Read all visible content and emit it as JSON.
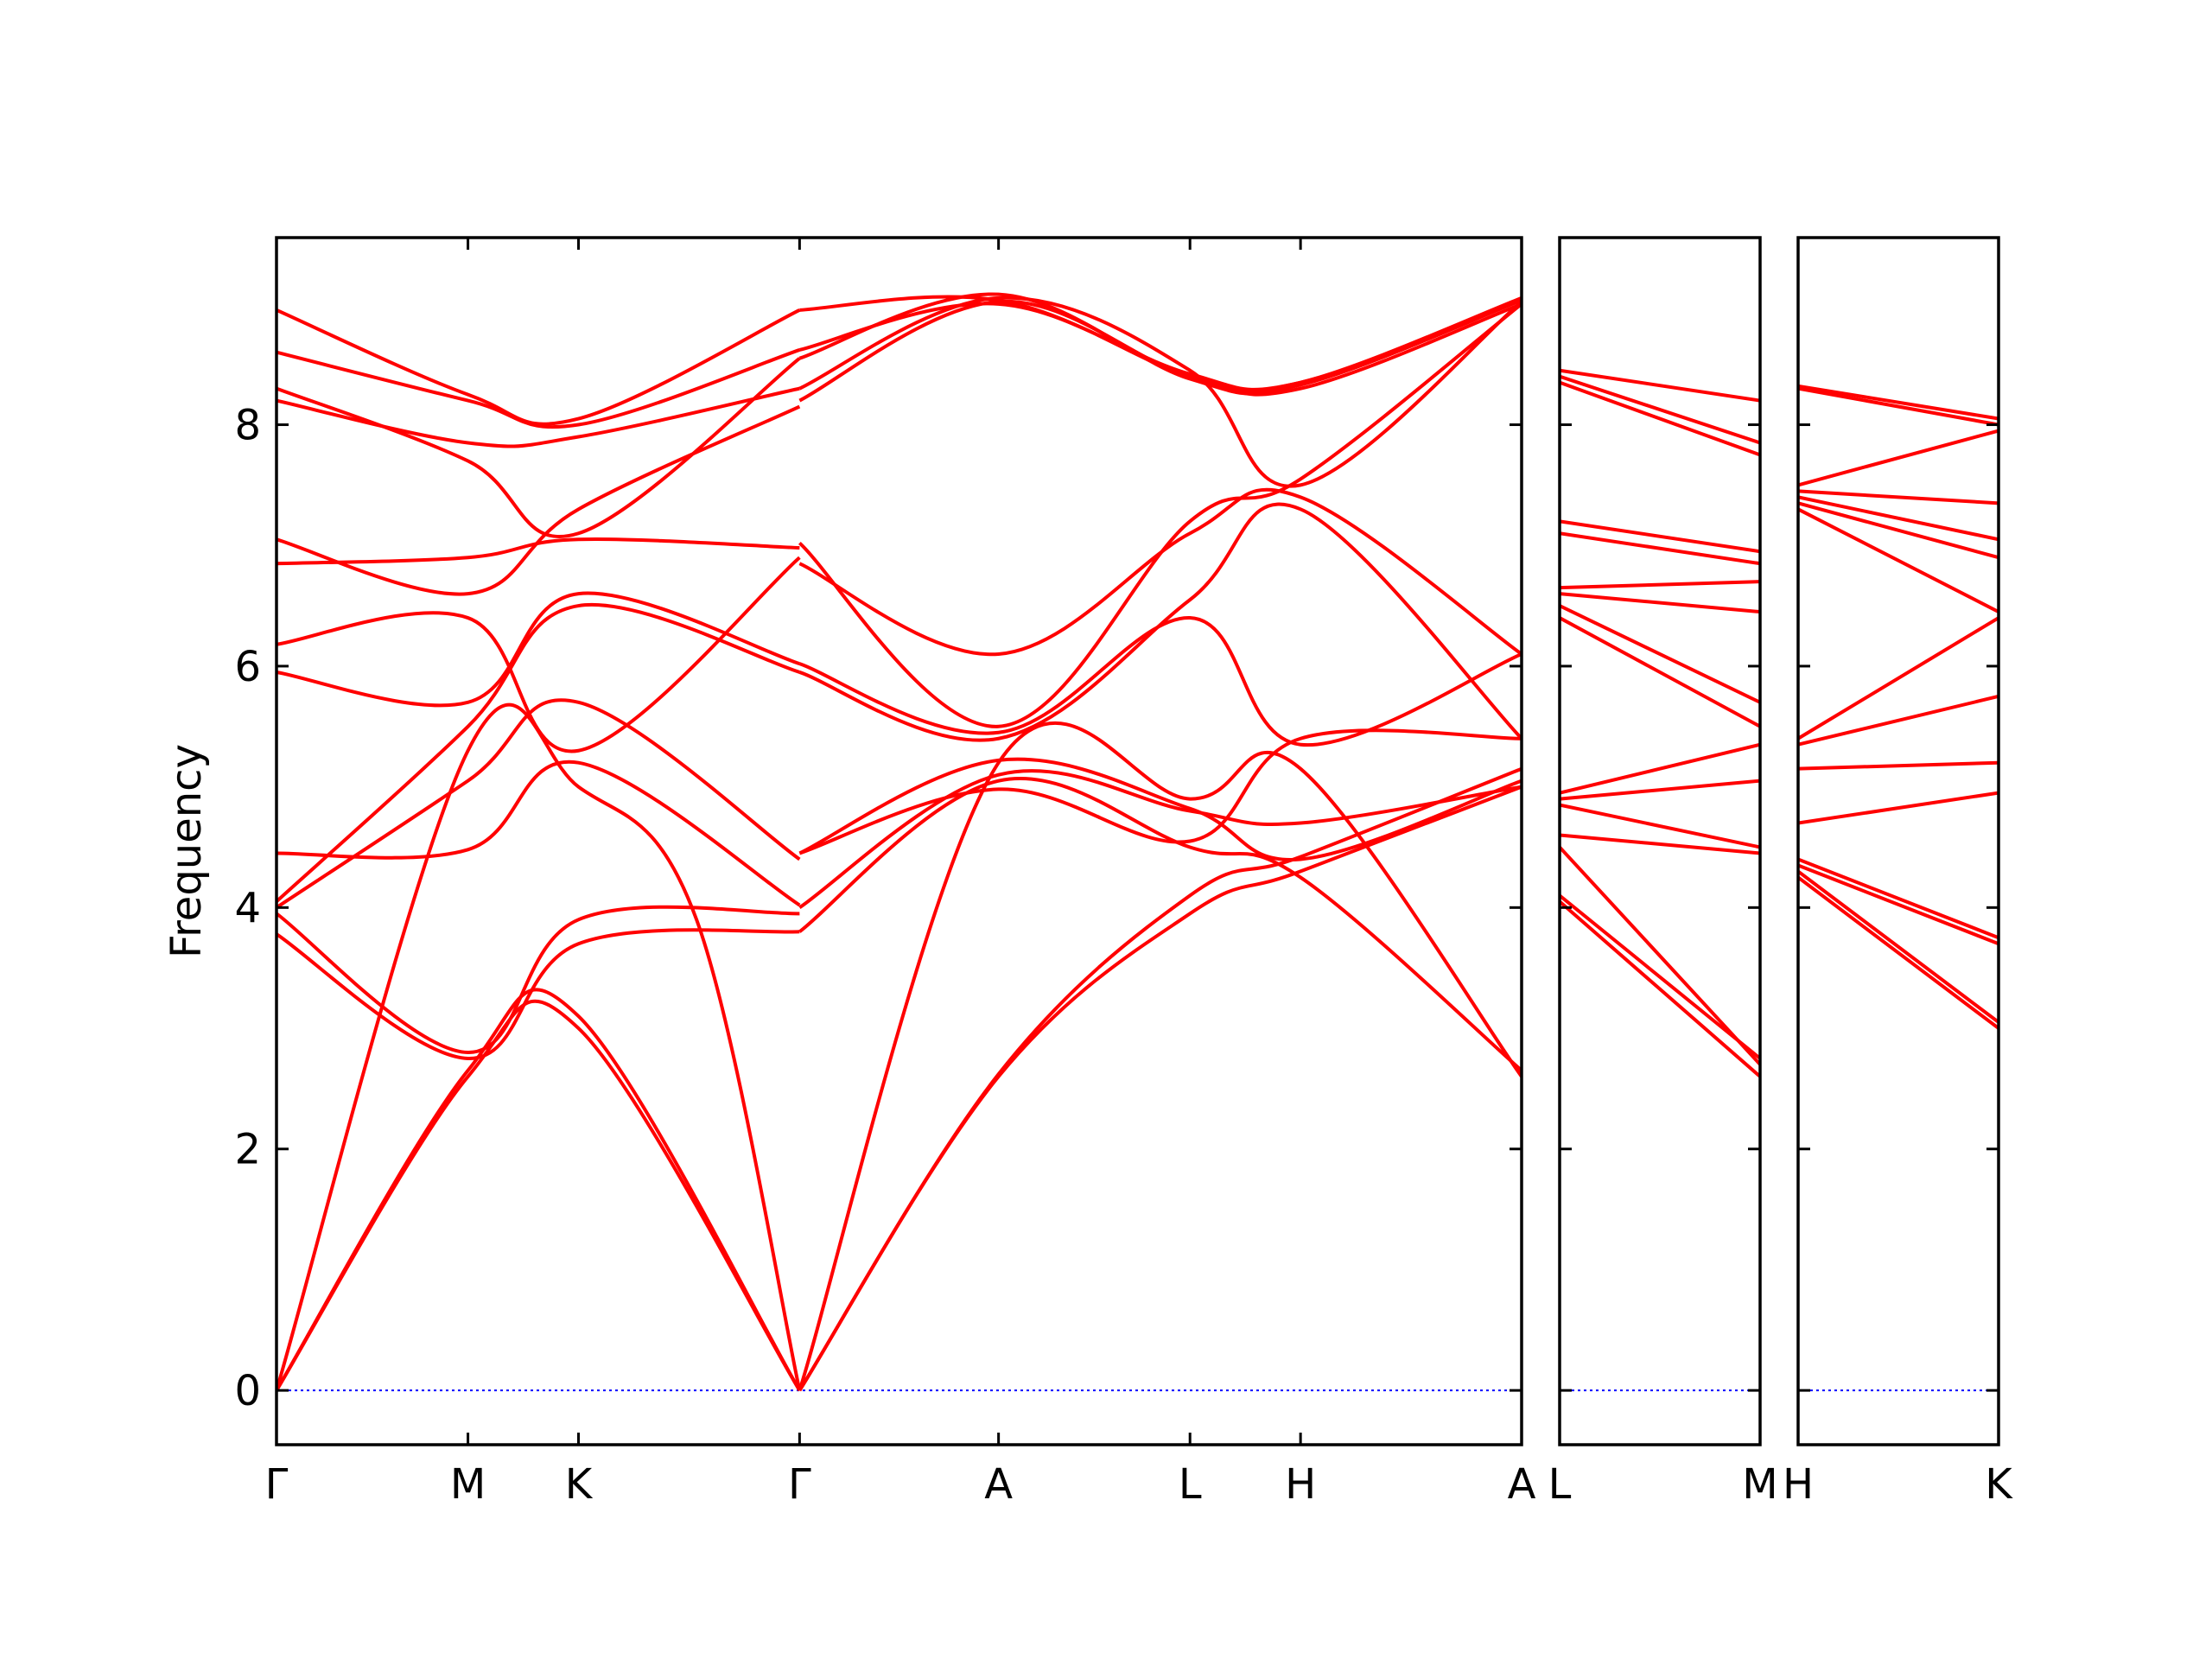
{
  "chart_data": {
    "type": "line",
    "ylabel": "Frequency",
    "ylim": [
      -0.45,
      9.55
    ],
    "yticks": [
      "0",
      "2",
      "4",
      "6",
      "8"
    ],
    "ytick_values": [
      0,
      2,
      4,
      6,
      8
    ],
    "grid": false,
    "colors": {
      "bands": "#ff0000",
      "zero_line": "#0000ff",
      "frame": "#000000"
    },
    "panels": [
      {
        "path_labels": [
          "Γ",
          "M",
          "K",
          "Γ",
          "A",
          "L",
          "H",
          "A"
        ],
        "label_positions": [
          0,
          0.866,
          1.366,
          2.366,
          3.266,
          4.132,
          4.632,
          5.632
        ],
        "bands": [
          {
            "x": [
              0,
              0.866,
              1.366,
              2.366
            ],
            "y": [
              0,
              2.6,
              3.0,
              0
            ]
          },
          {
            "x": [
              0,
              0.866,
              1.366,
              2.366
            ],
            "y": [
              0,
              2.65,
              3.1,
              0
            ]
          },
          {
            "x": [
              0,
              0.866,
              1.366,
              1.9,
              2.366
            ],
            "y": [
              0,
              5.3,
              5.0,
              3.9,
              0
            ]
          },
          {
            "x": [
              0,
              0.866,
              1.366,
              2.366
            ],
            "y": [
              3.78,
              2.75,
              3.7,
              3.8
            ]
          },
          {
            "x": [
              0,
              0.866,
              1.366,
              2.366
            ],
            "y": [
              3.95,
              2.8,
              3.9,
              3.95
            ]
          },
          {
            "x": [
              0,
              0.866,
              1.366,
              2.366
            ],
            "y": [
              4.45,
              4.48,
              5.2,
              4.02
            ]
          },
          {
            "x": [
              0,
              0.866,
              1.366,
              2.366
            ],
            "y": [
              4.0,
              5.05,
              5.7,
              4.4
            ]
          },
          {
            "x": [
              0,
              0.866,
              1.366,
              2.366
            ],
            "y": [
              4.05,
              5.5,
              6.5,
              5.95
            ]
          },
          {
            "x": [
              0,
              0.866,
              1.366,
              2.366
            ],
            "y": [
              5.95,
              5.7,
              6.6,
              6.02
            ]
          },
          {
            "x": [
              0,
              0.866,
              1.366,
              2.366
            ],
            "y": [
              6.18,
              6.4,
              5.3,
              6.9
            ]
          },
          {
            "x": [
              0,
              0.866,
              1.366,
              2.366
            ],
            "y": [
              6.85,
              6.9,
              7.05,
              6.98
            ]
          },
          {
            "x": [
              0,
              0.866,
              1.366,
              2.366
            ],
            "y": [
              7.05,
              6.6,
              7.3,
              8.15
            ]
          },
          {
            "x": [
              0,
              0.866,
              1.366,
              2.366
            ],
            "y": [
              8.2,
              7.85,
              7.9,
              8.3
            ]
          },
          {
            "x": [
              0,
              0.866,
              1.366,
              2.366
            ],
            "y": [
              8.3,
              7.7,
              7.1,
              8.55
            ]
          },
          {
            "x": [
              0,
              0.866,
              1.366,
              2.366
            ],
            "y": [
              8.6,
              8.2,
              8.0,
              8.62
            ]
          },
          {
            "x": [
              0,
              0.866,
              1.366,
              2.366
            ],
            "y": [
              8.95,
              8.25,
              8.05,
              8.95
            ]
          },
          {
            "x": [
              2.366,
              3.266,
              4.132,
              4.632,
              5.632
            ],
            "y": [
              0,
              2.6,
              3.95,
              4.3,
              5.0
            ]
          },
          {
            "x": [
              2.366,
              3.266,
              4.132,
              4.632,
              5.632
            ],
            "y": [
              0,
              2.62,
              4.1,
              4.42,
              5.15
            ]
          },
          {
            "x": [
              2.366,
              3.266,
              4.132,
              4.632,
              5.632
            ],
            "y": [
              0,
              5.2,
              4.9,
              5.15,
              2.6
            ]
          },
          {
            "x": [
              2.366,
              3.266,
              4.132,
              4.632,
              5.632
            ],
            "y": [
              3.8,
              5.05,
              4.5,
              4.25,
              2.65
            ]
          },
          {
            "x": [
              2.366,
              3.266,
              4.132,
              4.632,
              5.632
            ],
            "y": [
              4.0,
              5.1,
              4.8,
              4.7,
              5.0
            ]
          },
          {
            "x": [
              2.366,
              3.266,
              4.132,
              4.632,
              5.632
            ],
            "y": [
              4.45,
              4.98,
              4.55,
              5.4,
              5.4
            ]
          },
          {
            "x": [
              2.366,
              3.266,
              4.132,
              4.632,
              5.632
            ],
            "y": [
              4.45,
              5.22,
              4.82,
              4.4,
              5.05
            ]
          },
          {
            "x": [
              2.366,
              3.266,
              4.132,
              4.632,
              5.632
            ],
            "y": [
              5.95,
              5.4,
              6.55,
              7.3,
              5.4
            ]
          },
          {
            "x": [
              2.366,
              3.266,
              4.132,
              4.632,
              5.632
            ],
            "y": [
              6.02,
              5.45,
              6.4,
              5.35,
              6.1
            ]
          },
          {
            "x": [
              2.366,
              3.266,
              4.132,
              4.632,
              5.632
            ],
            "y": [
              6.85,
              6.1,
              7.1,
              7.4,
              6.1
            ]
          },
          {
            "x": [
              2.366,
              3.266,
              4.132,
              4.632,
              5.632
            ],
            "y": [
              7.02,
              5.5,
              7.2,
              7.55,
              9.0
            ]
          },
          {
            "x": [
              2.366,
              3.266,
              4.132,
              4.632,
              5.632
            ],
            "y": [
              8.2,
              9.02,
              8.4,
              8.35,
              9.05
            ]
          },
          {
            "x": [
              2.366,
              3.266,
              4.132,
              4.632,
              5.632
            ],
            "y": [
              8.3,
              9.05,
              8.45,
              7.5,
              9.02
            ]
          },
          {
            "x": [
              2.366,
              3.266,
              4.132,
              4.632,
              5.632
            ],
            "y": [
              8.55,
              9.08,
              8.38,
              8.33,
              9.03
            ]
          },
          {
            "x": [
              2.366,
              3.266,
              4.132,
              4.632,
              5.632
            ],
            "y": [
              8.62,
              9.0,
              8.4,
              8.3,
              9.0
            ]
          },
          {
            "x": [
              2.366,
              3.266,
              4.132,
              4.632,
              5.632
            ],
            "y": [
              8.95,
              9.03,
              8.42,
              8.35,
              9.04
            ]
          }
        ]
      },
      {
        "path_labels": [
          "L",
          "M"
        ],
        "label_positions": [
          0,
          1
        ],
        "bands": [
          {
            "x": [
              0,
              1
            ],
            "y": [
              4.05,
              2.6
            ]
          },
          {
            "x": [
              0,
              1
            ],
            "y": [
              4.1,
              2.75
            ]
          },
          {
            "x": [
              0,
              1
            ],
            "y": [
              4.5,
              2.7
            ]
          },
          {
            "x": [
              0,
              1
            ],
            "y": [
              4.6,
              4.45
            ]
          },
          {
            "x": [
              0,
              1
            ],
            "y": [
              4.85,
              4.5
            ]
          },
          {
            "x": [
              0,
              1
            ],
            "y": [
              4.9,
              5.05
            ]
          },
          {
            "x": [
              0,
              1
            ],
            "y": [
              4.95,
              5.35
            ]
          },
          {
            "x": [
              0,
              1
            ],
            "y": [
              6.4,
              5.5
            ]
          },
          {
            "x": [
              0,
              1
            ],
            "y": [
              6.5,
              5.7
            ]
          },
          {
            "x": [
              0,
              1
            ],
            "y": [
              6.6,
              6.45
            ]
          },
          {
            "x": [
              0,
              1
            ],
            "y": [
              6.65,
              6.7
            ]
          },
          {
            "x": [
              0,
              1
            ],
            "y": [
              7.1,
              6.85
            ]
          },
          {
            "x": [
              0,
              1
            ],
            "y": [
              7.2,
              6.95
            ]
          },
          {
            "x": [
              0,
              1
            ],
            "y": [
              8.35,
              7.75
            ]
          },
          {
            "x": [
              0,
              1
            ],
            "y": [
              8.4,
              7.85
            ]
          },
          {
            "x": [
              0,
              1
            ],
            "y": [
              8.45,
              8.2
            ]
          }
        ]
      },
      {
        "path_labels": [
          "H",
          "K"
        ],
        "label_positions": [
          0,
          1
        ],
        "bands": [
          {
            "x": [
              0,
              1
            ],
            "y": [
              4.25,
              3.0
            ]
          },
          {
            "x": [
              0,
              1
            ],
            "y": [
              4.3,
              3.05
            ]
          },
          {
            "x": [
              0,
              1
            ],
            "y": [
              4.35,
              3.7
            ]
          },
          {
            "x": [
              0,
              1
            ],
            "y": [
              4.4,
              3.75
            ]
          },
          {
            "x": [
              0,
              1
            ],
            "y": [
              4.7,
              4.95
            ]
          },
          {
            "x": [
              0,
              1
            ],
            "y": [
              5.15,
              5.2
            ]
          },
          {
            "x": [
              0,
              1
            ],
            "y": [
              5.35,
              5.75
            ]
          },
          {
            "x": [
              0,
              1
            ],
            "y": [
              5.4,
              6.4
            ]
          },
          {
            "x": [
              0,
              1
            ],
            "y": [
              7.3,
              6.45
            ]
          },
          {
            "x": [
              0,
              1
            ],
            "y": [
              7.35,
              6.9
            ]
          },
          {
            "x": [
              0,
              1
            ],
            "y": [
              7.4,
              7.05
            ]
          },
          {
            "x": [
              0,
              1
            ],
            "y": [
              7.45,
              7.35
            ]
          },
          {
            "x": [
              0,
              1
            ],
            "y": [
              7.5,
              7.95
            ]
          },
          {
            "x": [
              0,
              1
            ],
            "y": [
              8.3,
              8.0
            ]
          },
          {
            "x": [
              0,
              1
            ],
            "y": [
              8.32,
              8.05
            ]
          }
        ]
      }
    ]
  }
}
